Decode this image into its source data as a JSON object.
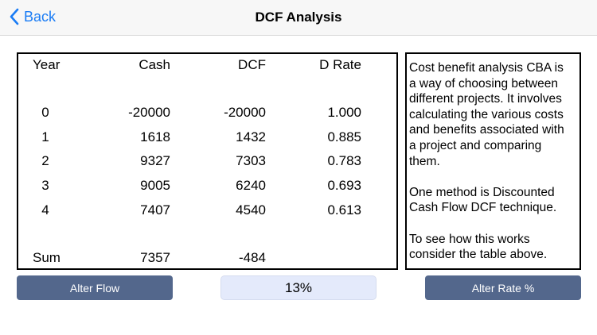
{
  "nav": {
    "back_label": "Back",
    "title": "DCF Analysis"
  },
  "table": {
    "headers": [
      "Year",
      "Cash",
      "DCF",
      "D Rate"
    ],
    "rows": [
      [
        "0",
        "-20000",
        "-20000",
        "1.000"
      ],
      [
        "1",
        "1618",
        "1432",
        "0.885"
      ],
      [
        "2",
        "9327",
        "7303",
        "0.783"
      ],
      [
        "3",
        "9005",
        "6240",
        "0.693"
      ],
      [
        "4",
        "7407",
        "4540",
        "0.613"
      ]
    ],
    "sum": [
      "Sum",
      "7357",
      "-484"
    ]
  },
  "info": {
    "paragraphs": [
      "Cost benefit analysis CBA is\na way of choosing between\ndifferent projects. It involves\ncalculating the various costs\nand benefits associated with\na project and comparing\nthem.",
      "One method is Discounted\nCash Flow DCF technique.",
      "To see how this works\nconsider the table above."
    ]
  },
  "controls": {
    "alter_flow": "Alter Flow",
    "rate_value": "13%",
    "alter_rate": "Alter Rate %"
  },
  "colors": {
    "accent": "#1a7cf5",
    "button": "#53678c",
    "rate_bg": "#e4eafb"
  }
}
